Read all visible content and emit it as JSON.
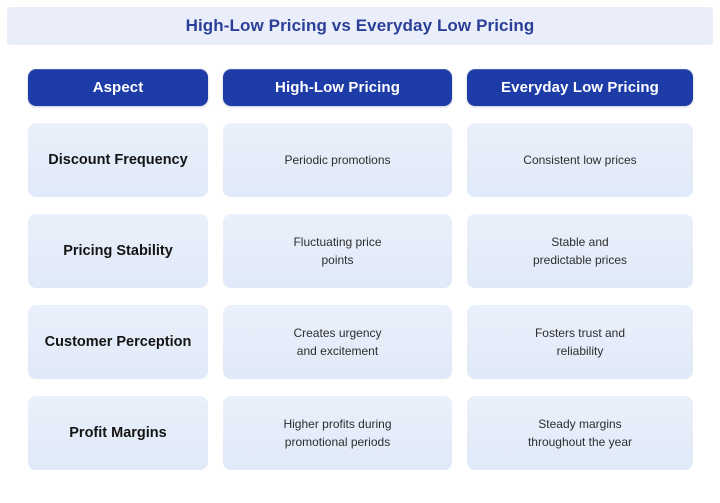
{
  "title": "High-Low Pricing vs Everyday Low Pricing",
  "colors": {
    "header_pill_blue": "#1e3ca8",
    "title_navy": "#2b3f97",
    "band_background": "#e9eefa",
    "cell_background": "#e4ecf9",
    "aspect_text": "#141414",
    "value_text": "#2d2d2d"
  },
  "table": {
    "headers": {
      "aspect": "Aspect",
      "high_low": "High-Low Pricing",
      "edlp": "Everyday Low Pricing"
    },
    "rows": [
      {
        "aspect": "Discount Frequency",
        "high_low": "Periodic promotions",
        "edlp": "Consistent low prices"
      },
      {
        "aspect": "Pricing Stability",
        "high_low": "Fluctuating price\npoints",
        "edlp": "Stable and\npredictable prices"
      },
      {
        "aspect": "Customer Perception",
        "high_low": "Creates urgency\nand excitement",
        "edlp": "Fosters trust and\nreliability"
      },
      {
        "aspect": "Profit Margins",
        "high_low": "Higher profits during\npromotional periods",
        "edlp": "Steady margins\nthroughout the year"
      }
    ]
  }
}
